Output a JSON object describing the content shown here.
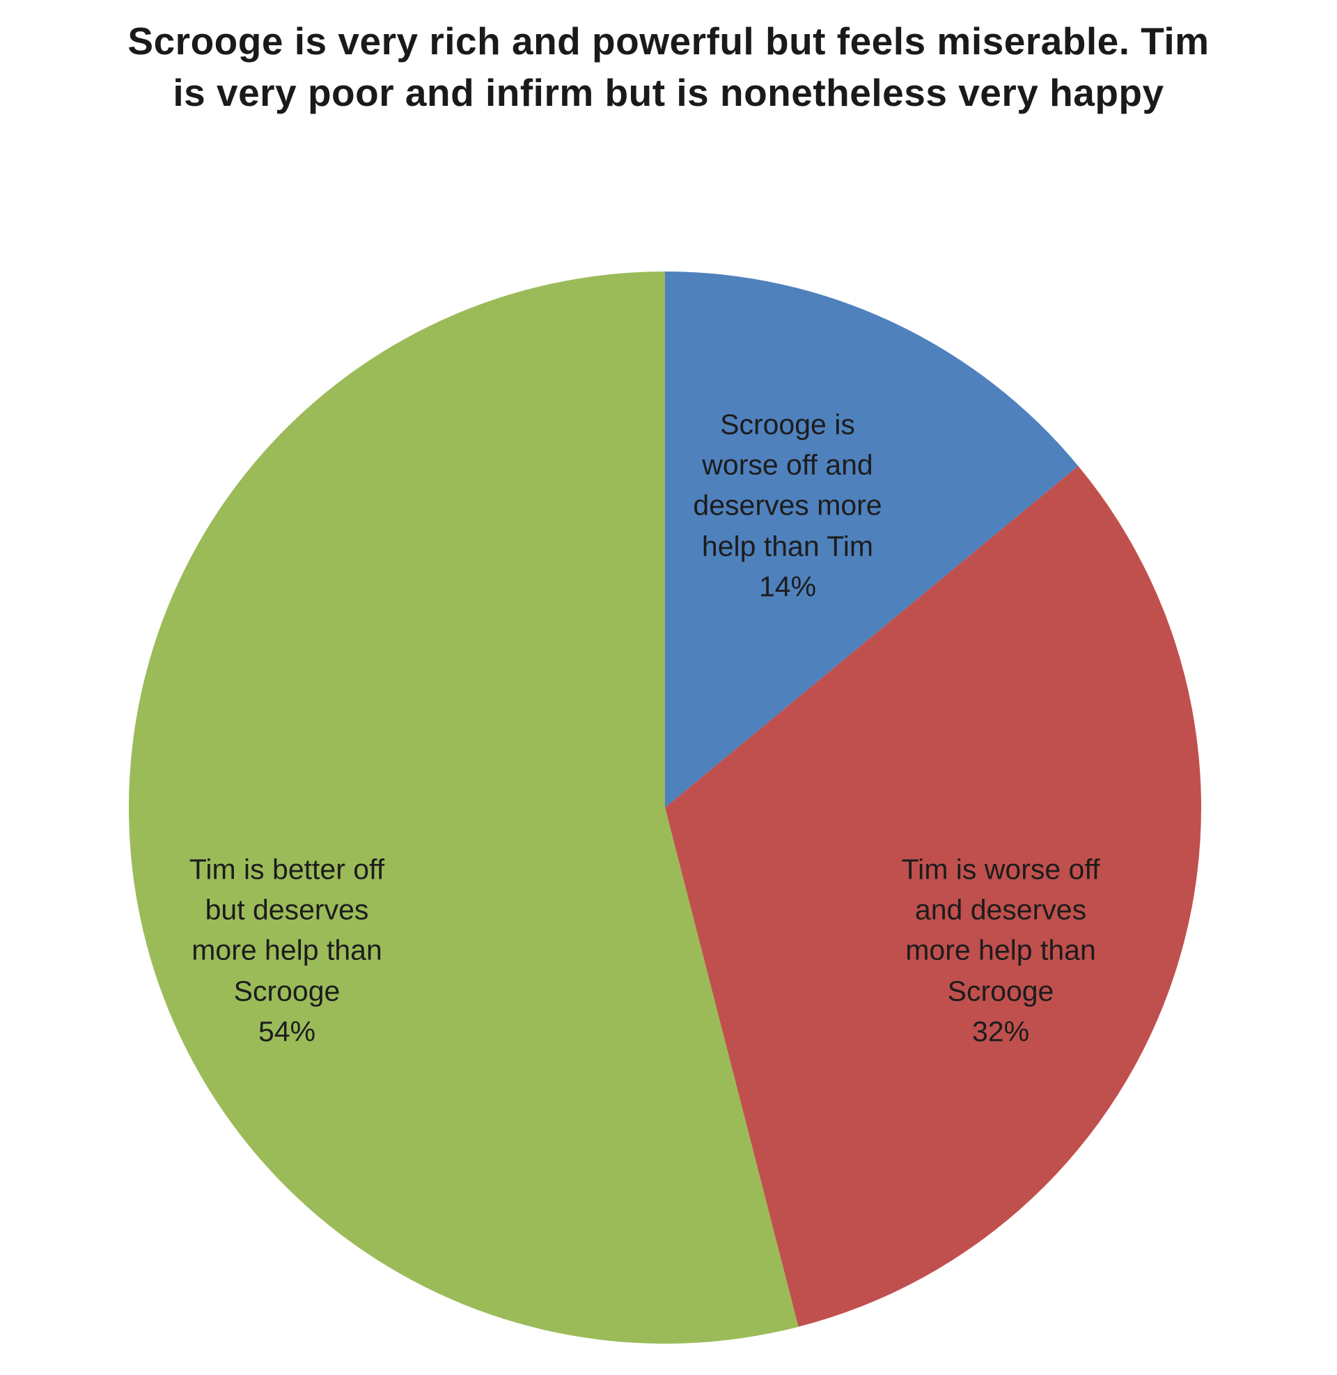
{
  "chart_data": {
    "type": "pie",
    "title": "Scrooge is very rich and powerful but feels miserable. Tim\nis very poor and infirm but is nonetheless very happy",
    "start_angle_deg": 0,
    "direction": "clockwise",
    "legend": "none",
    "labels_position": "inside",
    "slices": [
      {
        "label": "Scrooge is worse off and deserves more help than Tim",
        "value": 14,
        "percent_label": "14%",
        "color": "#4F81BD",
        "label_text": "Scrooge is\nworse off and\ndeserves more\nhelp than Tim\n14%"
      },
      {
        "label": "Tim is worse off and deserves more help than Scrooge",
        "value": 32,
        "percent_label": "32%",
        "color": "#C0504D",
        "label_text": "Tim is worse off\nand deserves\nmore help than\nScrooge\n32%"
      },
      {
        "label": "Tim is better off but deserves more help than Scrooge",
        "value": 54,
        "percent_label": "54%",
        "color": "#9BBB59",
        "label_text": "Tim is better off\nbut deserves\nmore help than\nScrooge\n54%"
      }
    ]
  }
}
